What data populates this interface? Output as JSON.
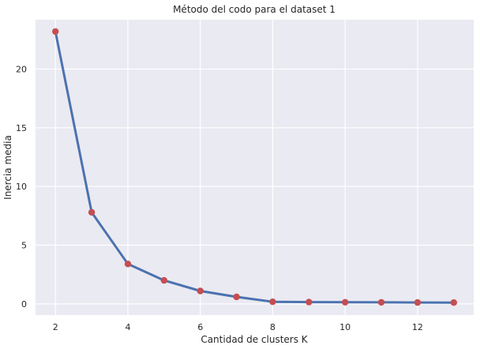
{
  "chart_data": {
    "type": "line",
    "title": "Método del codo para el dataset 1",
    "xlabel": "Cantidad de clusters K",
    "ylabel": "Inercia media",
    "x": [
      2,
      3,
      4,
      5,
      6,
      7,
      8,
      9,
      10,
      11,
      12,
      13
    ],
    "values": [
      23.2,
      7.8,
      3.4,
      2.0,
      1.1,
      0.6,
      0.18,
      0.15,
      0.14,
      0.13,
      0.12,
      0.11
    ],
    "xlim": [
      1.45,
      13.55
    ],
    "ylim": [
      -0.95,
      24.2
    ],
    "xticks": [
      2,
      4,
      6,
      8,
      10,
      12
    ],
    "yticks": [
      0,
      5,
      10,
      15,
      20
    ],
    "grid": true,
    "colors": {
      "background": "#eaeaf2",
      "grid": "#ffffff",
      "line": "#4c72b0",
      "marker": "#c44e52"
    }
  }
}
